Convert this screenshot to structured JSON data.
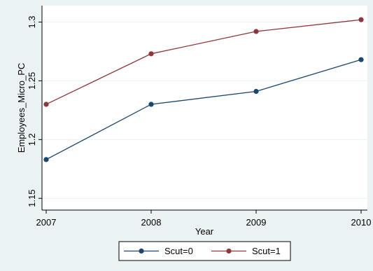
{
  "chart_data": {
    "type": "line",
    "title": "",
    "xlabel": "Year",
    "ylabel": "Employees_Micro_PC",
    "x": [
      2007,
      2008,
      2009,
      2010
    ],
    "x_tick_labels": [
      "2007",
      "2008",
      "2009",
      "2010"
    ],
    "y_ticks": [
      1.15,
      1.2,
      1.25,
      1.3
    ],
    "y_tick_labels": [
      "1.15",
      "1.2",
      "1.25",
      "1.3"
    ],
    "xlim": [
      2007,
      2010
    ],
    "ylim": [
      1.14,
      1.314
    ],
    "grid": true,
    "legend_position": "bottom",
    "series": [
      {
        "name": "Scut=0",
        "color": "#1a476f",
        "values": [
          1.183,
          1.23,
          1.241,
          1.268
        ]
      },
      {
        "name": "Scut=1",
        "color": "#90353b",
        "values": [
          1.23,
          1.273,
          1.292,
          1.302
        ]
      }
    ]
  }
}
